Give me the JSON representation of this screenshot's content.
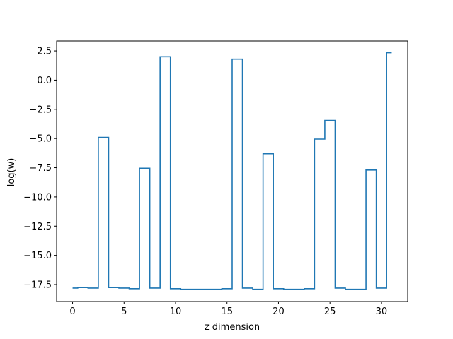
{
  "chart_data": {
    "type": "line",
    "drawstyle": "steps-mid",
    "title": "",
    "xlabel": "z dimension",
    "ylabel": "log(w)",
    "xlim": [
      -1.55,
      32.55
    ],
    "ylim": [
      -18.95,
      3.35
    ],
    "xticks": [
      0,
      5,
      10,
      15,
      20,
      25,
      30
    ],
    "xtick_labels": [
      "0",
      "5",
      "10",
      "15",
      "20",
      "25",
      "30"
    ],
    "yticks": [
      2.5,
      0.0,
      -2.5,
      -5.0,
      -7.5,
      -10.0,
      -12.5,
      -15.0,
      -17.5
    ],
    "ytick_labels": [
      "2.5",
      "0.0",
      "−2.5",
      "−5.0",
      "−7.5",
      "−10.0",
      "−12.5",
      "−15.0",
      "−17.5"
    ],
    "grid": false,
    "series": [
      {
        "color": "#1f77b4",
        "x": [
          0,
          1,
          2,
          3,
          4,
          5,
          6,
          7,
          8,
          9,
          10,
          11,
          12,
          13,
          14,
          15,
          16,
          17,
          18,
          19,
          20,
          21,
          22,
          23,
          24,
          25,
          26,
          27,
          28,
          29,
          30,
          31
        ],
        "values": [
          -17.8,
          -17.75,
          -17.8,
          -4.9,
          -17.75,
          -17.8,
          -17.85,
          -7.55,
          -17.8,
          2.0,
          -17.85,
          -17.9,
          -17.9,
          -17.9,
          -17.9,
          -17.85,
          1.8,
          -17.8,
          -17.9,
          -6.3,
          -17.85,
          -17.9,
          -17.9,
          -17.85,
          -5.05,
          -3.45,
          -17.8,
          -17.9,
          -17.9,
          -7.7,
          -17.8,
          2.35
        ]
      }
    ]
  }
}
